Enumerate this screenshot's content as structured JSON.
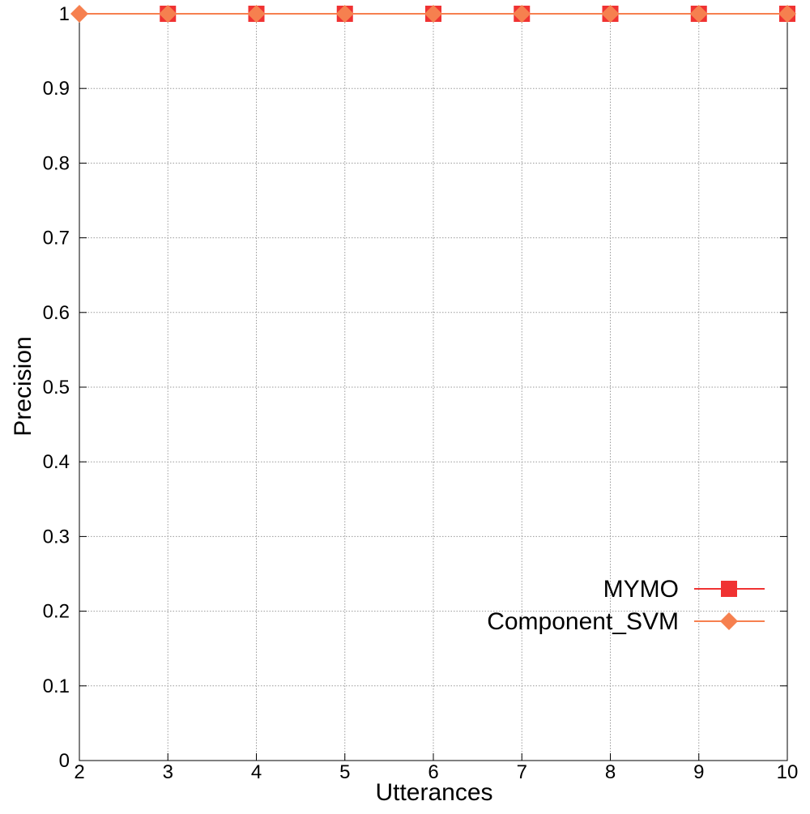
{
  "chart_data": {
    "type": "line",
    "title": "",
    "xlabel": "Utterances",
    "ylabel": "Precision",
    "x": [
      2,
      3,
      4,
      5,
      6,
      7,
      8,
      9,
      10
    ],
    "xlim": [
      2,
      10
    ],
    "ylim": [
      0,
      1
    ],
    "x_ticks": [
      "2",
      "3",
      "4",
      "5",
      "6",
      "7",
      "8",
      "9",
      "10"
    ],
    "y_ticks": [
      "0",
      "0.1",
      "0.2",
      "0.3",
      "0.4",
      "0.5",
      "0.6",
      "0.7",
      "0.8",
      "0.9",
      "1"
    ],
    "grid": true,
    "legend_position": "right",
    "series": [
      {
        "name": "MYMO",
        "marker": "square",
        "color": "#f03232",
        "values": [
          1,
          1,
          1,
          1,
          1,
          1,
          1,
          1,
          1
        ]
      },
      {
        "name": "Component_SVM",
        "marker": "diamond",
        "color": "#f6804f",
        "values": [
          1,
          1,
          1,
          1,
          1,
          1,
          1,
          1,
          1
        ]
      }
    ]
  }
}
